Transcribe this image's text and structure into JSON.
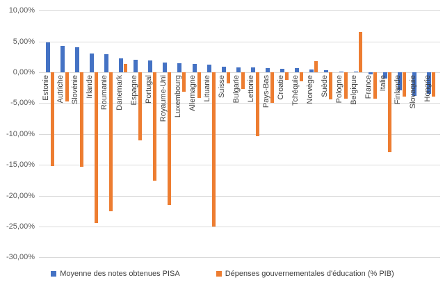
{
  "legend": {
    "series1": "Moyenne des notes obtenues PISA",
    "series2": "Dépenses gouvernementales d'éducation (% PIB)"
  },
  "colors": {
    "pisa": "#4472C4",
    "depenses": "#ED7D31",
    "gridline": "#d9d9d9",
    "tick_text": "#595959",
    "category_text": "#3f3f3f"
  },
  "chart_data": {
    "type": "bar",
    "title": "",
    "xlabel": "",
    "ylabel": "",
    "grid": true,
    "legend_position": "bottom",
    "ylim": [
      -30,
      10
    ],
    "ytick_values": [
      10,
      5,
      0,
      -5,
      -10,
      -15,
      -20,
      -25,
      -30
    ],
    "ytick_labels": [
      "10,00%",
      "5,00%",
      "0,00%",
      "-5,00%",
      "-10,00%",
      "-15,00%",
      "-20,00%",
      "-25,00%",
      "-30,00%"
    ],
    "categories": [
      "Estonie",
      "Autriche",
      "Slovénie",
      "Irlande",
      "Roumanie",
      "Danemark",
      "Espagne",
      "Portugal",
      "Royaume-Uni",
      "Luxembourg",
      "Allemagne",
      "Lituanie",
      "Suisse",
      "Bulgarie",
      "Lettonie",
      "Pays-Bas",
      "Croatie",
      "Tchéquie",
      "Norvège",
      "Suède",
      "Pologne",
      "Belgique",
      "France",
      "Italie",
      "Finlande",
      "Slovaquie",
      "Hongrie"
    ],
    "series": [
      {
        "name": "Moyenne des notes obtenues PISA",
        "color_key": "pisa",
        "values": [
          4.9,
          4.3,
          4.1,
          3.0,
          2.9,
          2.3,
          2.0,
          1.9,
          1.6,
          1.5,
          1.3,
          1.2,
          0.9,
          0.8,
          0.8,
          0.7,
          0.6,
          0.7,
          0.5,
          0.3,
          0.1,
          0.1,
          -0.3,
          -1.0,
          -2.9,
          -3.8,
          -3.5
        ]
      },
      {
        "name": "Dépenses gouvernementales d'éducation (% PIB)",
        "color_key": "depenses",
        "values": [
          -15.2,
          -4.7,
          -15.3,
          -24.5,
          -22.5,
          1.4,
          -11.0,
          -17.6,
          -21.5,
          -3.1,
          -4.2,
          -25.0,
          -1.8,
          -2.7,
          -10.4,
          -5.0,
          -1.2,
          -1.5,
          1.8,
          -4.4,
          -4.3,
          6.5,
          -4.3,
          -13.0,
          -3.9,
          0.0,
          -3.9
        ]
      }
    ]
  }
}
